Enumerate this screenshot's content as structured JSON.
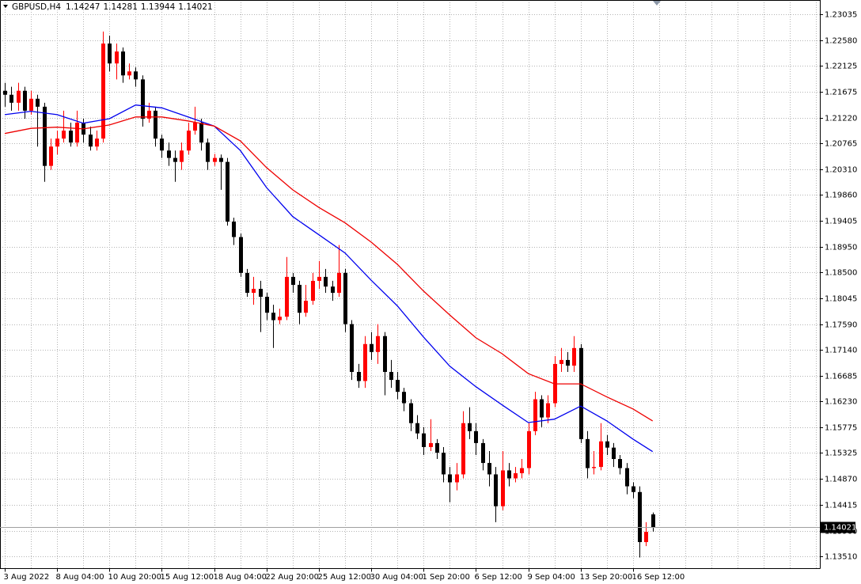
{
  "chart_data": {
    "type": "candlestick",
    "symbol": "GBPUSD,H4",
    "ohlc": [
      1.14247,
      1.14281,
      1.13944,
      1.14021
    ],
    "last_price": 1.14021,
    "up_color": "#ff0000",
    "down_color": "#000000",
    "grid": true,
    "ylim": [
      1.13274,
      1.23285
    ],
    "yticks": [
      1.23035,
      {
        "value": 1.2258,
        "label": "1.22580"
      },
      1.22125,
      1.21675,
      {
        "value": 1.2122,
        "label": "1.21220"
      },
      1.20765,
      {
        "value": 1.2031,
        "label": "1.20310"
      },
      {
        "value": 1.1986,
        "label": "1.19860"
      },
      1.19405,
      {
        "value": 1.1895,
        "label": "1.18950"
      },
      {
        "value": 1.185,
        "label": "1.18500"
      },
      1.18045,
      {
        "value": 1.1759,
        "label": "1.17590"
      },
      {
        "value": 1.1714,
        "label": "1.17140"
      },
      1.16685,
      {
        "value": 1.1623,
        "label": "1.16230"
      },
      1.15775,
      1.15325,
      {
        "value": 1.1487,
        "label": "1.14870"
      },
      1.14415,
      {
        "value": 1.1396,
        "label": "1.13960"
      },
      {
        "value": 1.1351,
        "label": "1.13510"
      }
    ],
    "categories": [
      "3 Aug 2022",
      null,
      null,
      null,
      null,
      null,
      null,
      null,
      "8 Aug 04:00",
      null,
      null,
      null,
      null,
      null,
      null,
      null,
      "10 Aug 20:00",
      null,
      null,
      null,
      null,
      null,
      null,
      null,
      "15 Aug 12:00",
      null,
      null,
      null,
      null,
      null,
      null,
      null,
      "18 Aug 04:00",
      null,
      null,
      null,
      null,
      null,
      null,
      null,
      "22 Aug 20:00",
      null,
      null,
      null,
      null,
      null,
      null,
      null,
      "25 Aug 12:00",
      null,
      null,
      null,
      null,
      null,
      null,
      null,
      "30 Aug 04:00",
      null,
      null,
      null,
      null,
      null,
      null,
      null,
      "1 Sep 20:00",
      null,
      null,
      null,
      null,
      null,
      null,
      null,
      "6 Sep 12:00",
      null,
      null,
      null,
      null,
      null,
      null,
      null,
      "9 Sep 04:00",
      null,
      null,
      null,
      null,
      null,
      null,
      null,
      "13 Sep 20:00",
      null,
      null,
      null,
      null,
      null,
      null,
      null,
      "16 Sep 12:00",
      null,
      null,
      null
    ],
    "open": [
      1.2169,
      1.2162,
      1.2148,
      1.2169,
      1.2134,
      1.2155,
      1.2141,
      1.2037,
      1.2071,
      1.2085,
      1.2099,
      1.2078,
      1.2113,
      1.2092,
      1.2071,
      1.2085,
      1.2252,
      1.2217,
      1.2238,
      1.2196,
      1.2203,
      1.2189,
      1.212,
      1.2134,
      1.2085,
      1.2064,
      1.2051,
      1.2044,
      1.2064,
      1.2099,
      1.2113,
      1.2078,
      1.2044,
      1.2051,
      1.2044,
      1.1939,
      1.1912,
      1.1849,
      1.1814,
      1.1821,
      1.1807,
      1.1779,
      1.1766,
      1.1772,
      1.1842,
      1.1828,
      1.1779,
      1.18,
      1.1835,
      1.1842,
      1.1825,
      1.1814,
      1.1849,
      1.1759,
      1.1675,
      1.1659,
      1.1724,
      1.171,
      1.1738,
      1.1675,
      1.1661,
      1.164,
      1.162,
      1.1585,
      1.1567,
      1.1543,
      1.155,
      1.1533,
      1.1495,
      1.1481,
      1.1495,
      1.1585,
      1.1571,
      1.155,
      1.1515,
      1.1495,
      1.1439,
      1.1502,
      1.1488,
      1.1497,
      1.1506,
      1.1571,
      1.1627,
      1.1595,
      1.162,
      1.1689,
      1.1696,
      1.1686,
      1.1717,
      1.1557,
      1.1506,
      1.1508,
      1.1553,
      1.1542,
      1.1522,
      1.1506,
      1.1474,
      1.1464,
      1.1376,
      1.14247
    ],
    "high": [
      1.2183,
      1.2176,
      1.2183,
      1.2176,
      1.2169,
      1.2162,
      1.2148,
      1.2085,
      1.2099,
      1.2134,
      1.2113,
      1.2134,
      1.212,
      1.2106,
      1.2099,
      1.2273,
      1.2266,
      1.2252,
      1.2245,
      1.2217,
      1.221,
      1.2196,
      1.2148,
      1.2141,
      1.2092,
      1.2078,
      1.2064,
      1.2078,
      1.2113,
      1.2141,
      1.212,
      1.2085,
      1.2058,
      1.2057,
      1.2051,
      1.1946,
      1.1918,
      1.1856,
      1.1842,
      1.1835,
      1.1814,
      1.1793,
      1.1786,
      1.1877,
      1.1849,
      1.1835,
      1.1828,
      1.1849,
      1.187,
      1.1856,
      1.1835,
      1.1898,
      1.1856,
      1.1766,
      1.1689,
      1.1738,
      1.1745,
      1.1759,
      1.1745,
      1.1696,
      1.1675,
      1.1647,
      1.1627,
      1.1599,
      1.1578,
      1.1592,
      1.1557,
      1.1543,
      1.1508,
      1.1515,
      1.1606,
      1.1613,
      1.1585,
      1.1557,
      1.1536,
      1.1508,
      1.1536,
      1.1515,
      1.1508,
      1.1522,
      1.1585,
      1.164,
      1.1634,
      1.1634,
      1.1703,
      1.1717,
      1.171,
      1.1738,
      1.1724,
      1.1571,
      1.1536,
      1.1585,
      1.1564,
      1.155,
      1.1529,
      1.1515,
      1.1481,
      1.1474,
      1.1411,
      1.14281
    ],
    "low": [
      1.2141,
      1.2134,
      1.2134,
      1.212,
      1.2127,
      1.2071,
      1.2009,
      1.203,
      1.2057,
      1.2078,
      1.2071,
      1.2071,
      1.2078,
      1.2064,
      1.2064,
      1.2078,
      1.2203,
      1.2189,
      1.2183,
      1.2189,
      1.2176,
      1.2106,
      1.2113,
      1.2071,
      1.2051,
      1.2037,
      1.2009,
      1.203,
      1.2057,
      1.2092,
      1.2064,
      1.203,
      1.2037,
      1.1995,
      1.1932,
      1.1898,
      1.1842,
      1.1807,
      1.1793,
      1.1745,
      1.1766,
      1.1717,
      1.1759,
      1.1766,
      1.1814,
      1.1759,
      1.1772,
      1.1793,
      1.1821,
      1.1814,
      1.18,
      1.1807,
      1.1745,
      1.1661,
      1.1647,
      1.1647,
      1.1696,
      1.1689,
      1.1634,
      1.1647,
      1.1627,
      1.1606,
      1.1571,
      1.1557,
      1.1529,
      1.1536,
      1.1522,
      1.1481,
      1.1446,
      1.1467,
      1.1488,
      1.1557,
      1.1529,
      1.1502,
      1.1474,
      1.1411,
      1.1432,
      1.1474,
      1.1481,
      1.1488,
      1.1495,
      1.1564,
      1.1578,
      1.1585,
      1.1613,
      1.1675,
      1.1675,
      1.1675,
      1.155,
      1.1488,
      1.1495,
      1.1502,
      1.1529,
      1.1508,
      1.1495,
      1.146,
      1.1453,
      1.1349,
      1.1369,
      1.13944
    ],
    "close": [
      1.2162,
      1.2148,
      1.2169,
      1.2134,
      1.2155,
      1.2141,
      1.2037,
      1.2071,
      1.2085,
      1.2099,
      1.2078,
      1.2113,
      1.2092,
      1.2071,
      1.2085,
      1.2252,
      1.2217,
      1.2238,
      1.2196,
      1.2203,
      1.2189,
      1.212,
      1.2134,
      1.2085,
      1.2064,
      1.2051,
      1.2044,
      1.2064,
      1.2099,
      1.2113,
      1.2078,
      1.2044,
      1.2051,
      1.2044,
      1.1939,
      1.1912,
      1.1849,
      1.1814,
      1.1821,
      1.1807,
      1.1779,
      1.1766,
      1.1772,
      1.1842,
      1.1828,
      1.1779,
      1.18,
      1.1835,
      1.1842,
      1.1825,
      1.1814,
      1.1849,
      1.1759,
      1.1675,
      1.1659,
      1.1724,
      1.171,
      1.1738,
      1.1675,
      1.1661,
      1.164,
      1.162,
      1.1585,
      1.1567,
      1.1543,
      1.155,
      1.1533,
      1.1495,
      1.1481,
      1.1495,
      1.1585,
      1.1571,
      1.155,
      1.1515,
      1.1495,
      1.1439,
      1.1502,
      1.1488,
      1.1497,
      1.1506,
      1.1571,
      1.1627,
      1.1595,
      1.162,
      1.1689,
      1.1696,
      1.1686,
      1.1717,
      1.1557,
      1.1506,
      1.1508,
      1.1553,
      1.1542,
      1.1522,
      1.1506,
      1.1474,
      1.1464,
      1.1376,
      1.1394,
      1.14021
    ],
    "indicators": [
      {
        "color": "#0000ee",
        "x": [
          0,
          4,
          8,
          12,
          16,
          20,
          24,
          28,
          32,
          36,
          40,
          44,
          48,
          52,
          56,
          60,
          64,
          68,
          72,
          76,
          80,
          84,
          88,
          92,
          96,
          99
        ],
        "values": [
          1.2127,
          1.2133,
          1.2127,
          1.2112,
          1.212,
          1.2144,
          1.2139,
          1.2123,
          1.2107,
          1.2064,
          1.1999,
          1.1948,
          1.1916,
          1.1884,
          1.1836,
          1.1791,
          1.1736,
          1.1685,
          1.1649,
          1.1617,
          1.1586,
          1.1592,
          1.1615,
          1.1589,
          1.1557,
          1.1535
        ]
      },
      {
        "color": "#ee0000",
        "x": [
          0,
          4,
          8,
          12,
          16,
          20,
          24,
          28,
          32,
          36,
          40,
          44,
          48,
          52,
          56,
          60,
          64,
          68,
          72,
          76,
          80,
          84,
          88,
          92,
          96,
          99
        ],
        "values": [
          1.2094,
          1.2103,
          1.2105,
          1.2102,
          1.2109,
          1.2123,
          1.2123,
          1.2116,
          1.2107,
          1.2081,
          1.2034,
          1.1995,
          1.1964,
          1.1937,
          1.1903,
          1.1864,
          1.1817,
          1.1775,
          1.1735,
          1.1707,
          1.1672,
          1.1654,
          1.1654,
          1.1631,
          1.161,
          1.1589
        ]
      }
    ]
  }
}
